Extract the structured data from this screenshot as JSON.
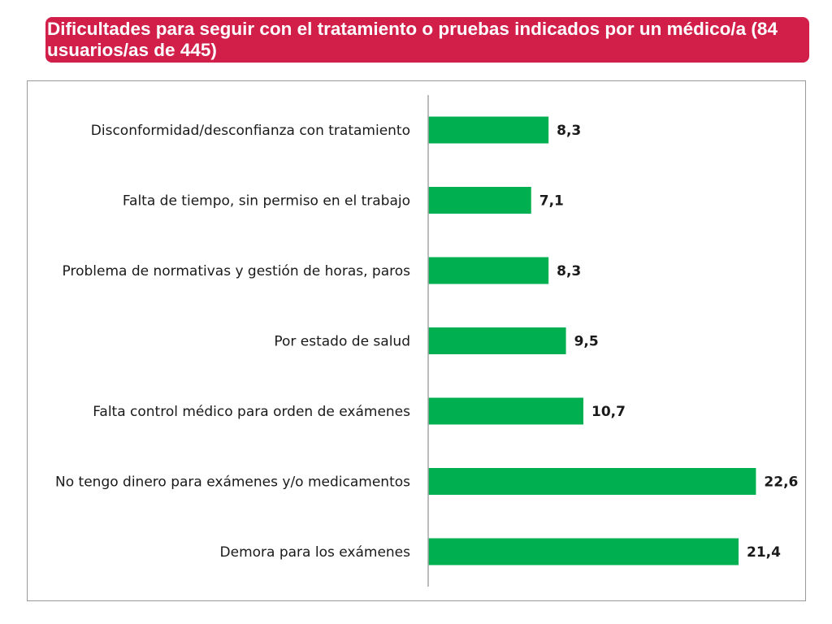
{
  "header": {
    "title": "Dificultades para seguir con el tratamiento o pruebas indicados por un médico/a (84 usuarios/as de 445)"
  },
  "colors": {
    "banner": "#d21f4a",
    "bar": "#00b050",
    "axis": "#a6a6a6"
  },
  "chart_data": {
    "type": "bar",
    "orientation": "horizontal",
    "title": "Dificultades para seguir con el tratamiento o pruebas indicados por un médico/a (84 usuarios/as de 445)",
    "categories": [
      "Disconformidad/desconfianza con tratamiento",
      "Falta de tiempo, sin permiso en el trabajo",
      "Problema de normativas y gestión de horas, paros",
      "Por estado de salud",
      "Falta control médico para orden de exámenes",
      "No tengo dinero para exámenes y/o medicamentos",
      "Demora para los exámenes"
    ],
    "values": [
      8.3,
      7.1,
      8.3,
      9.5,
      10.7,
      22.6,
      21.4
    ],
    "value_labels": [
      "8,3",
      "7,1",
      "8,3",
      "9,5",
      "10,7",
      "22,6",
      "21,4"
    ],
    "xlim": [
      0,
      25
    ],
    "grid": false,
    "legend": "none"
  }
}
